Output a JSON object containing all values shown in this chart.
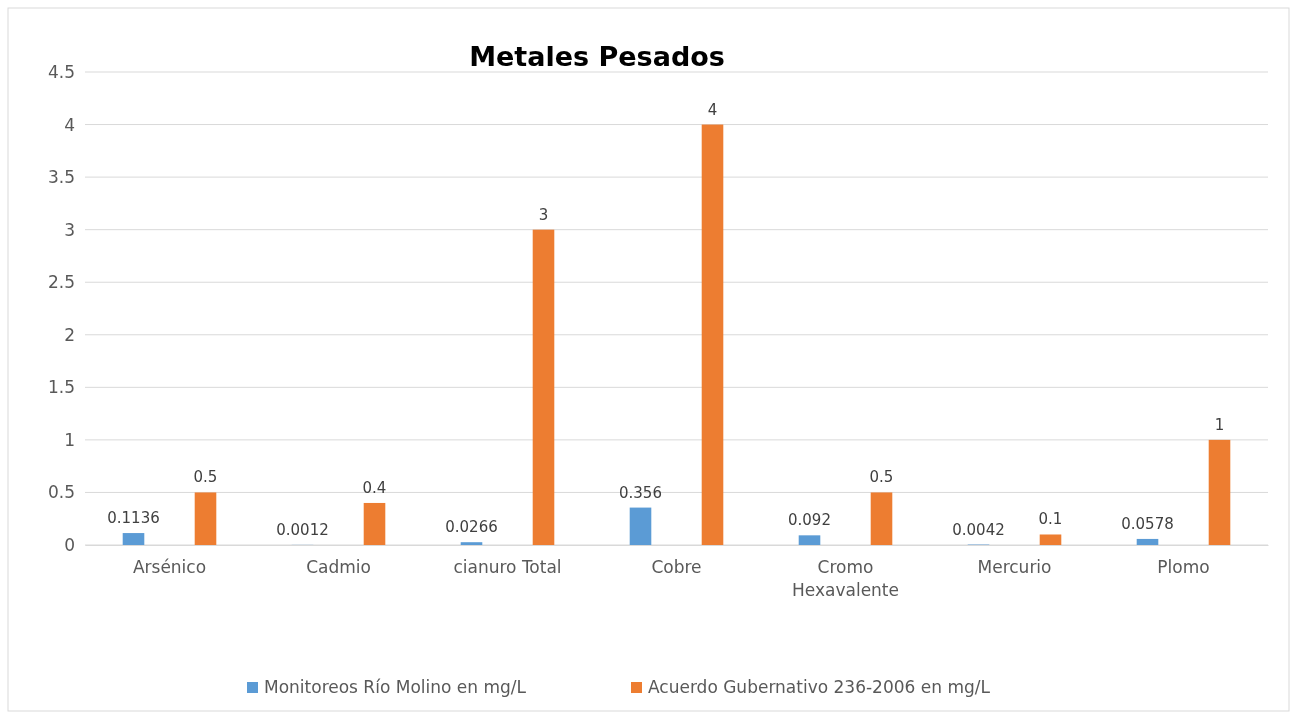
{
  "chart_data": {
    "type": "bar",
    "title": "Metales Pesados",
    "categories": [
      "Arsénico",
      "Cadmio",
      "cianuro Total",
      "Cobre",
      "Cromo Hexavalente",
      "Mercurio",
      "Plomo"
    ],
    "series": [
      {
        "name": "Monitoreos Río Molino en mg/L",
        "color": "#5b9bd5",
        "values": [
          0.1136,
          0.0012,
          0.0266,
          0.356,
          0.092,
          0.0042,
          0.0578
        ]
      },
      {
        "name": "Acuerdo Gubernativo 236-2006 en mg/L",
        "color": "#ed7d31",
        "values": [
          0.5,
          0.4,
          3,
          4,
          0.5,
          0.1,
          1
        ]
      }
    ],
    "ylim": [
      0,
      4.5
    ],
    "yticks": [
      0,
      0.5,
      1,
      1.5,
      2,
      2.5,
      3,
      3.5,
      4,
      4.5
    ],
    "grid": "y",
    "legend": "bottom",
    "data_labels": true
  }
}
